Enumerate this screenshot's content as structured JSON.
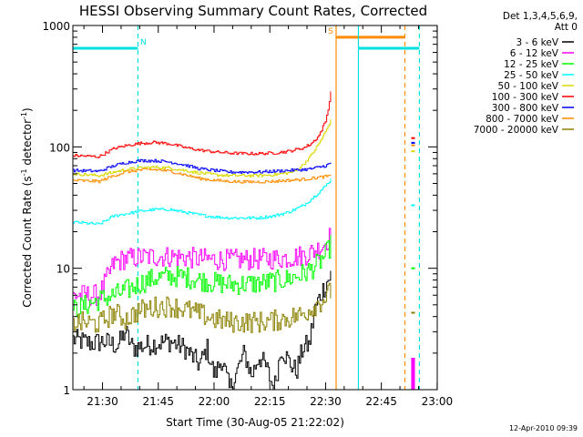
{
  "chart_data": {
    "type": "line",
    "title": "HESSI Observing Summary Count Rates, Corrected",
    "xlabel": "Start Time (30-Aug-05 21:22:02)",
    "ylabel_main": "Corrected Count Rate (s",
    "ylabel_sup1": "-1",
    "ylabel_mid": " detector",
    "ylabel_sup2": "-1",
    "ylabel_end": ")",
    "y_scale": "log",
    "ylim": [
      1,
      1000
    ],
    "xlim_minutes": [
      0,
      98
    ],
    "x_ticks": [
      {
        "label": "21:30",
        "minute": 7.97
      },
      {
        "label": "21:45",
        "minute": 22.97
      },
      {
        "label": "22:00",
        "minute": 37.97
      },
      {
        "label": "22:15",
        "minute": 52.97
      },
      {
        "label": "22:30",
        "minute": 67.97
      },
      {
        "label": "22:45",
        "minute": 82.97
      },
      {
        "label": "23:00",
        "minute": 97.97
      }
    ],
    "y_ticks": [
      {
        "label": "1",
        "value": 1
      },
      {
        "label": "10",
        "value": 10
      },
      {
        "label": "100",
        "value": 100
      },
      {
        "label": "1000",
        "value": 1000
      }
    ],
    "legend_header": [
      "Det 1,3,4,5,6,9,",
      "Att 0"
    ],
    "legend_position": "right",
    "series": [
      {
        "name": "3 - 6 keV",
        "color": "#000000",
        "x": [
          0,
          5,
          8,
          12,
          14,
          16,
          22,
          26,
          30,
          34,
          36,
          38,
          40,
          42,
          44,
          46,
          48,
          50,
          52,
          54,
          56,
          58,
          60,
          62,
          63.5,
          64,
          65,
          66,
          67,
          68,
          69.5
        ],
        "y": [
          2.6,
          2.4,
          2.5,
          2.3,
          3.0,
          2.2,
          2.4,
          2.5,
          2.2,
          1.6,
          2.2,
          1.3,
          1.8,
          1.0,
          1.4,
          2.0,
          1.3,
          1.9,
          1.5,
          1.0,
          2.2,
          1.7,
          1.4,
          2.3,
          2.3,
          3.0,
          4.5,
          5.5,
          6.5,
          7.5,
          9.0
        ]
      },
      {
        "name": "6 - 12 keV",
        "color": "#ff00ff",
        "x": [
          0,
          7,
          11,
          14,
          18,
          22,
          26,
          30,
          34,
          38,
          42,
          46,
          50,
          54,
          58,
          62,
          64,
          66,
          68,
          69.5
        ],
        "y": [
          6.0,
          6.0,
          11.0,
          12.0,
          12.3,
          12.5,
          12.5,
          12.3,
          12.0,
          11.8,
          11.7,
          11.8,
          11.9,
          12.0,
          12.2,
          12.8,
          13.5,
          14.5,
          16.5,
          19.0
        ]
      },
      {
        "name": "12 - 25 keV",
        "color": "#00ff00",
        "x": [
          0,
          7,
          11,
          14,
          18,
          22,
          26,
          30,
          34,
          38,
          42,
          46,
          50,
          54,
          58,
          62,
          64,
          66,
          68,
          69.5
        ],
        "y": [
          4.5,
          5.5,
          6.0,
          6.5,
          7.5,
          8.3,
          8.6,
          8.5,
          8.0,
          7.6,
          7.4,
          7.4,
          7.5,
          7.8,
          8.2,
          9.0,
          9.8,
          11.0,
          13.0,
          16.0
        ]
      },
      {
        "name": "25 - 50 keV",
        "color": "#00ffff",
        "x": [
          0,
          7,
          11,
          14,
          18,
          22,
          26,
          30,
          34,
          38,
          42,
          46,
          50,
          54,
          58,
          62,
          64,
          66,
          68,
          69.5
        ],
        "y": [
          24.0,
          23.0,
          27.0,
          28.0,
          29.5,
          30.5,
          30.5,
          29.0,
          27.5,
          26.5,
          26.0,
          26.0,
          26.0,
          27.0,
          29.0,
          33.0,
          37.0,
          42.0,
          48.0,
          55.0
        ]
      },
      {
        "name": "50 - 100 keV",
        "color": "#d8d800",
        "x": [
          0,
          7,
          11,
          14,
          18,
          22,
          26,
          30,
          34,
          38,
          42,
          46,
          50,
          54,
          58,
          60,
          62,
          64,
          66,
          68,
          69.5
        ],
        "y": [
          60.0,
          58.0,
          62.0,
          65.0,
          67.0,
          68.0,
          67.0,
          64.0,
          61.0,
          59.0,
          58.0,
          58.0,
          58.0,
          59.0,
          61.0,
          64.0,
          72.0,
          85.0,
          105.0,
          135.0,
          170.0
        ]
      },
      {
        "name": "100 - 300 keV",
        "color": "#ff0000",
        "x": [
          0,
          7,
          11,
          14,
          18,
          22,
          26,
          30,
          34,
          38,
          42,
          46,
          50,
          54,
          58,
          62,
          64,
          66,
          68,
          69,
          69.5
        ],
        "y": [
          85.0,
          83.0,
          97.0,
          102.0,
          107.0,
          109.0,
          106.0,
          99.0,
          94.0,
          91.0,
          89.0,
          88.0,
          88.0,
          89.0,
          92.0,
          98.0,
          106.0,
          122.0,
          165.0,
          240.0,
          330.0
        ]
      },
      {
        "name": "300 - 800 keV",
        "color": "#0000ff",
        "x": [
          0,
          7,
          11,
          14,
          18,
          22,
          26,
          30,
          34,
          38,
          42,
          46,
          50,
          54,
          58,
          62,
          64,
          66,
          68,
          69.5
        ],
        "y": [
          64.0,
          63.0,
          70.0,
          74.0,
          77.0,
          77.0,
          75.0,
          71.0,
          66.0,
          64.0,
          62.0,
          62.0,
          62.0,
          63.0,
          64.0,
          65.0,
          66.0,
          68.0,
          70.0,
          74.0
        ]
      },
      {
        "name": "800 - 7000 keV",
        "color": "#ff8c00",
        "x": [
          0,
          7,
          11,
          14,
          18,
          22,
          26,
          30,
          34,
          38,
          42,
          46,
          50,
          54,
          58,
          62,
          64,
          66,
          68,
          69.5
        ],
        "y": [
          53.0,
          52.0,
          58.0,
          62.0,
          64.5,
          65.0,
          63.0,
          59.0,
          55.0,
          53.0,
          52.0,
          51.5,
          51.5,
          52.0,
          53.0,
          54.0,
          55.0,
          56.0,
          57.0,
          58.0
        ]
      },
      {
        "name": "7000 - 20000 keV",
        "color": "#8b8000",
        "x": [
          0,
          7,
          11,
          14,
          18,
          22,
          26,
          30,
          34,
          38,
          42,
          46,
          50,
          54,
          58,
          62,
          64,
          66,
          68,
          69.5
        ],
        "y": [
          3.6,
          3.5,
          4.3,
          3.8,
          4.5,
          4.8,
          4.9,
          4.6,
          4.2,
          3.8,
          3.6,
          3.6,
          3.6,
          3.7,
          3.9,
          4.2,
          4.7,
          5.2,
          5.8,
          6.5
        ]
      }
    ],
    "post_gap_series_values": {
      "x": [
        91,
        92
      ],
      "values_by_series": [
        [
          1.8,
          1.8
        ],
        [
          1.8,
          1.8
        ],
        [
          10.0,
          9.8
        ],
        [
          33.0,
          32.0
        ],
        [
          92.0,
          90.0
        ],
        [
          118.0,
          115.0
        ],
        [
          108.0,
          105.0
        ],
        [
          103.0,
          100.0
        ],
        [
          4.3,
          4.2
        ]
      ]
    },
    "markers": [
      {
        "label": "N",
        "minute": 17.5,
        "color": "#00e0e0",
        "style": "dashed",
        "bar_from": 0,
        "bar_to": 17.5,
        "bar_level": 650
      },
      {
        "label": "S",
        "minute": 70.8,
        "color": "#ff8c00",
        "style": "solid",
        "bar_from": 70.8,
        "bar_to": 89.3,
        "bar_level": 800
      },
      {
        "label": "",
        "minute": 76.8,
        "color": "#00e0e0",
        "style": "solid",
        "bar_from": 76.8,
        "bar_to": 93.2,
        "bar_level": 650
      },
      {
        "label": "",
        "minute": 89.3,
        "color": "#ff8c00",
        "style": "dashed"
      },
      {
        "label": "",
        "minute": 93.2,
        "color": "#00e0e0",
        "style": "dashed"
      }
    ],
    "timestamp": "12-Apr-2010 09:39"
  }
}
